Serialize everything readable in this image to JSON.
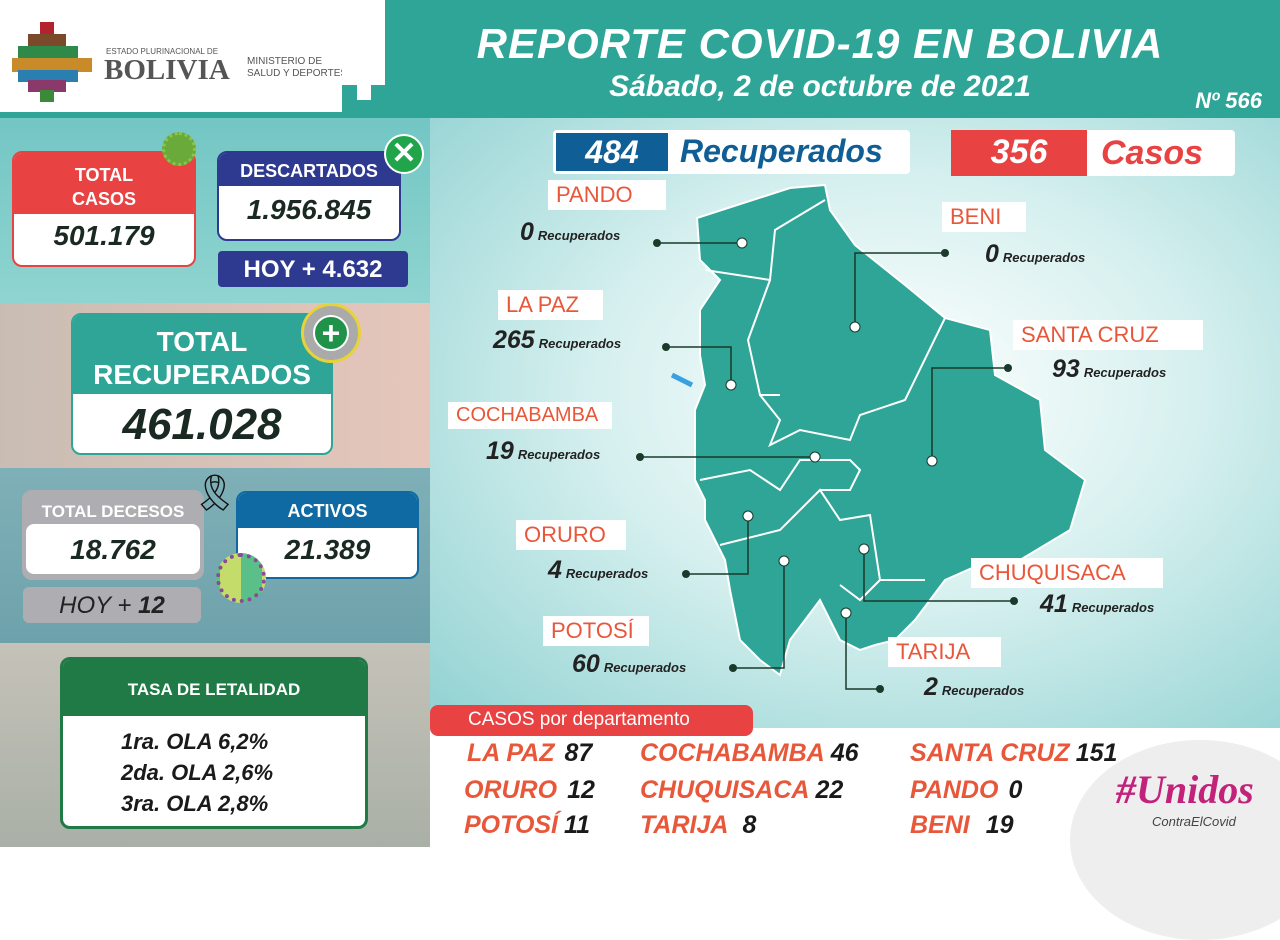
{
  "header": {
    "logo_small": "ESTADO PLURINACIONAL DE",
    "logo_big": "BOLIVIA",
    "ministry_line1": "MINISTERIO DE",
    "ministry_line2": "SALUD Y DEPORTES",
    "title": "REPORTE COVID-19 EN BOLIVIA",
    "date": "Sábado, 2 de octubre de 2021",
    "report_number": "Nº 566"
  },
  "colors": {
    "teal": "#2ea597",
    "red": "#e84242",
    "navy": "#2e3a8f",
    "blue": "#0f6aa3",
    "green": "#1f7a45",
    "orange": "#e8573a"
  },
  "summary": {
    "total_casos": {
      "label1": "TOTAL",
      "label2": "CASOS",
      "value": "501.179"
    },
    "descartados": {
      "label": "DESCARTADOS",
      "value": "1.956.845",
      "today": "HOY + 4.632"
    },
    "total_recuperados": {
      "label1": "TOTAL",
      "label2": "RECUPERADOS",
      "value": "461.028"
    },
    "total_decesos": {
      "label": "TOTAL DECESOS",
      "value": "18.762",
      "today_prefix": "HOY +",
      "today_value": "12"
    },
    "activos": {
      "label": "ACTIVOS",
      "value": "21.389"
    },
    "letalidad": {
      "title": "TASA DE LETALIDAD",
      "rows": [
        "1ra. OLA 6,2%",
        "2da. OLA 2,6%",
        "3ra. OLA 2,8%"
      ]
    }
  },
  "daily": {
    "recuperados_value": "484",
    "recuperados_label": "Recuperados",
    "casos_value": "356",
    "casos_label": "Casos"
  },
  "map": {
    "suffix": "Recuperados",
    "departments": [
      {
        "name": "PANDO",
        "value": "0"
      },
      {
        "name": "BENI",
        "value": "0"
      },
      {
        "name": "LA PAZ",
        "value": "265"
      },
      {
        "name": "SANTA CRUZ",
        "value": "93"
      },
      {
        "name": "COCHABAMBA",
        "value": "19"
      },
      {
        "name": "ORURO",
        "value": "4"
      },
      {
        "name": "CHUQUISACA",
        "value": "41"
      },
      {
        "name": "POTOSÍ",
        "value": "60"
      },
      {
        "name": "TARIJA",
        "value": "2"
      }
    ]
  },
  "casos_departamento": {
    "title": "CASOS por departamento",
    "items": [
      {
        "name": "LA PAZ",
        "value": "87"
      },
      {
        "name": "COCHABAMBA",
        "value": "46"
      },
      {
        "name": "SANTA CRUZ",
        "value": "151"
      },
      {
        "name": "ORURO",
        "value": "12"
      },
      {
        "name": "CHUQUISACA",
        "value": "22"
      },
      {
        "name": "PANDO",
        "value": "0"
      },
      {
        "name": "POTOSÍ",
        "value": "11"
      },
      {
        "name": "TARIJA",
        "value": "8"
      },
      {
        "name": "BENI",
        "value": "19"
      }
    ]
  },
  "campaign": {
    "hashtag": "#Unidos",
    "sub": "ContraElCovid"
  }
}
